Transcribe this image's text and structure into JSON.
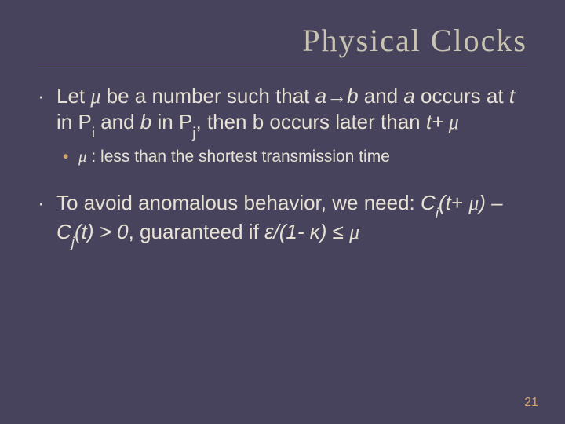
{
  "slide": {
    "background_color": "#48435c",
    "title": {
      "text": "Physical Clocks",
      "color": "#c9c3b2",
      "fontsize": 40
    },
    "rule_color": "#bfb9a6",
    "body_color": "#e6e1d3",
    "body_fontsize": 26,
    "sub_color": "#e6e1d3",
    "sub_fontsize": 21,
    "sub_mark_color": "#d4a56b",
    "bullets": [
      {
        "lead": "Let ",
        "mu1": "μ",
        "t1": " be a number such that ",
        "ab": "a→b",
        "t2": " and ",
        "a": "a",
        "t3": " occurs at ",
        "t": "t",
        "t4": " in P",
        "si": "i",
        "t5": " and ",
        "b": "b",
        "t6": " in P",
        "sj": "j",
        "t7": ", then b occurs later than ",
        "tmu": "t+",
        "mu2": " μ"
      },
      {
        "mu": "μ",
        "rest": "  : less than the shortest transmission time"
      },
      {
        "t1": "To avoid anomalous behavior, we need: ",
        "ci": "C",
        "si": "i",
        "tp": "(t+ ",
        "mu1": "μ",
        "mid": ") – C",
        "sj": "j",
        "t2": "(t) > 0",
        "t3": ", guaranteed if ",
        "frac": "ε/(1- κ) ≤ ",
        "mu2": "μ"
      }
    ],
    "page_number": {
      "text": "21",
      "color": "#d4a56b",
      "fontsize": 16
    }
  }
}
